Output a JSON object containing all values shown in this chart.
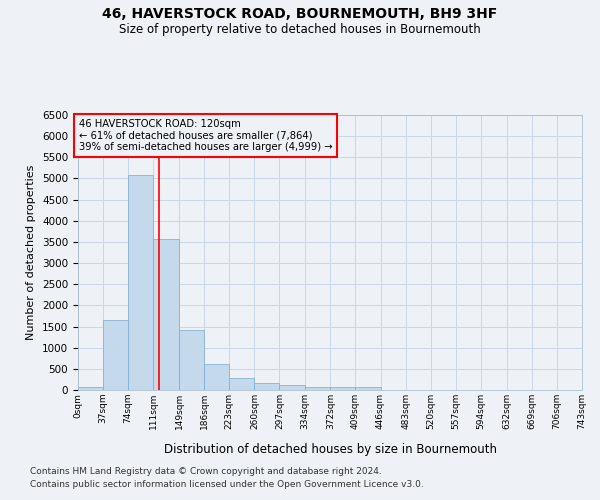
{
  "title1": "46, HAVERSTOCK ROAD, BOURNEMOUTH, BH9 3HF",
  "title2": "Size of property relative to detached houses in Bournemouth",
  "xlabel": "Distribution of detached houses by size in Bournemouth",
  "ylabel": "Number of detached properties",
  "bin_edges": [
    0,
    37,
    74,
    111,
    149,
    186,
    223,
    260,
    297,
    334,
    372,
    409,
    446,
    483,
    520,
    557,
    594,
    632,
    669,
    706,
    743
  ],
  "bar_heights": [
    75,
    1650,
    5075,
    3575,
    1425,
    625,
    295,
    155,
    110,
    75,
    65,
    65,
    0,
    0,
    0,
    0,
    0,
    0,
    0,
    0
  ],
  "bar_color": "#c5d9ed",
  "bar_edge_color": "#7aaad0",
  "grid_color": "#c8d8e8",
  "vline_x": 120,
  "vline_color": "red",
  "annotation_text": "46 HAVERSTOCK ROAD: 120sqm\n← 61% of detached houses are smaller (7,864)\n39% of semi-detached houses are larger (4,999) →",
  "box_edge_color": "red",
  "ylim": [
    0,
    6500
  ],
  "yticks": [
    0,
    500,
    1000,
    1500,
    2000,
    2500,
    3000,
    3500,
    4000,
    4500,
    5000,
    5500,
    6000,
    6500
  ],
  "footer1": "Contains HM Land Registry data © Crown copyright and database right 2024.",
  "footer2": "Contains public sector information licensed under the Open Government Licence v3.0.",
  "bg_color": "#eef2f7",
  "plot_bg_color": "#eef2f7"
}
